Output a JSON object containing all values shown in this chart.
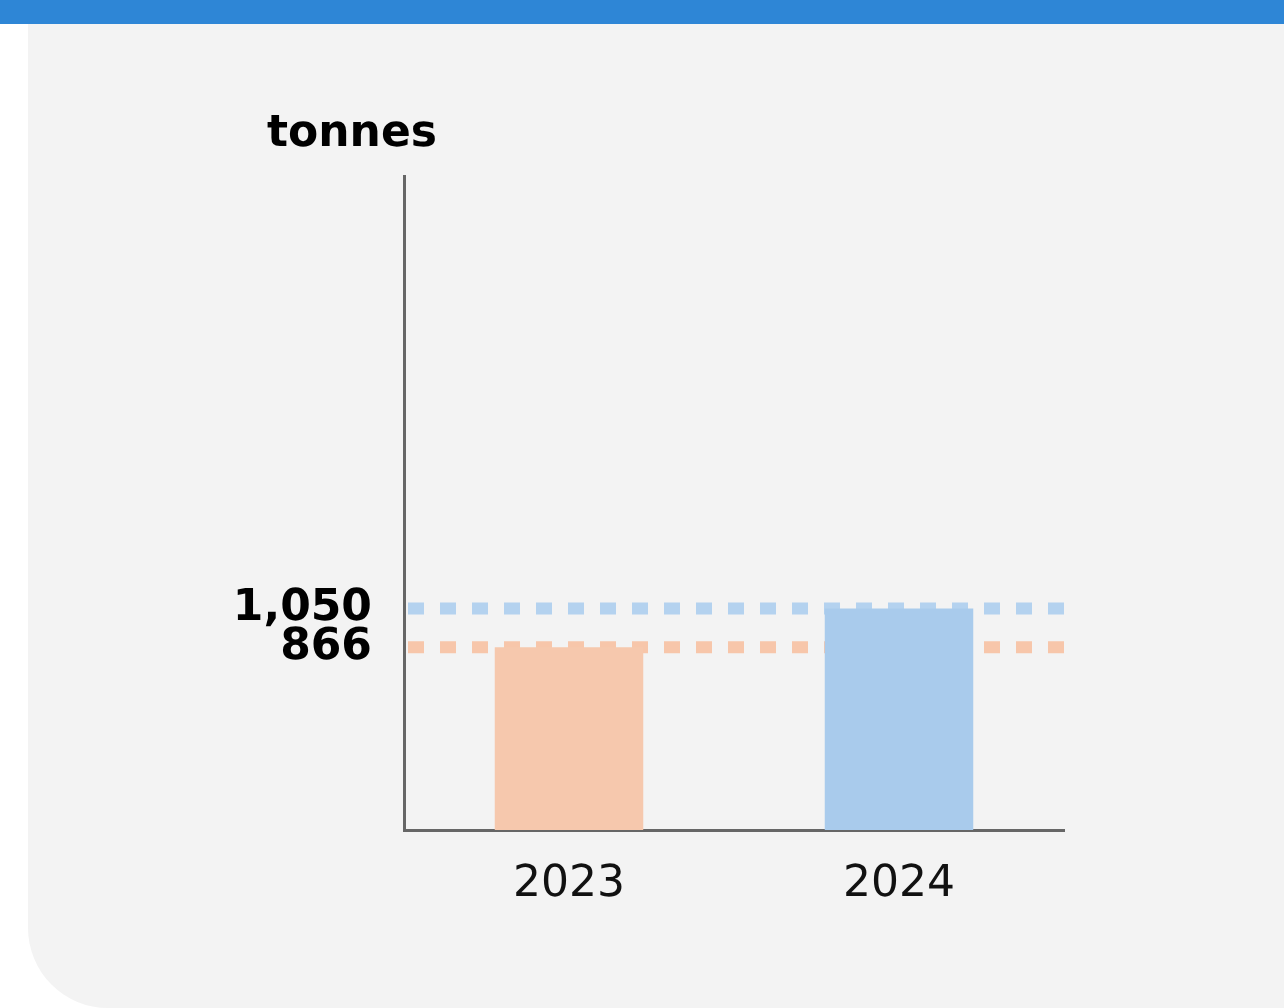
{
  "chart_data": {
    "type": "bar",
    "ylabel": "tonnes",
    "categories": [
      "2023",
      "2024"
    ],
    "values": [
      866,
      1050
    ],
    "colors": [
      "#f6c8ad",
      "#a9cbec"
    ],
    "ylim": [
      0,
      3100
    ],
    "yticks": [
      866,
      {
        "value": 1050,
        "label": "1,050"
      }
    ],
    "grid": false,
    "legend": false,
    "ref_lines": [
      {
        "axis": "y",
        "value": 866,
        "color": "#f7c6aa",
        "line_style": "dotted"
      },
      {
        "axis": "y",
        "value": 1050,
        "color": "#b4d2ef",
        "line_style": "dotted"
      }
    ]
  }
}
